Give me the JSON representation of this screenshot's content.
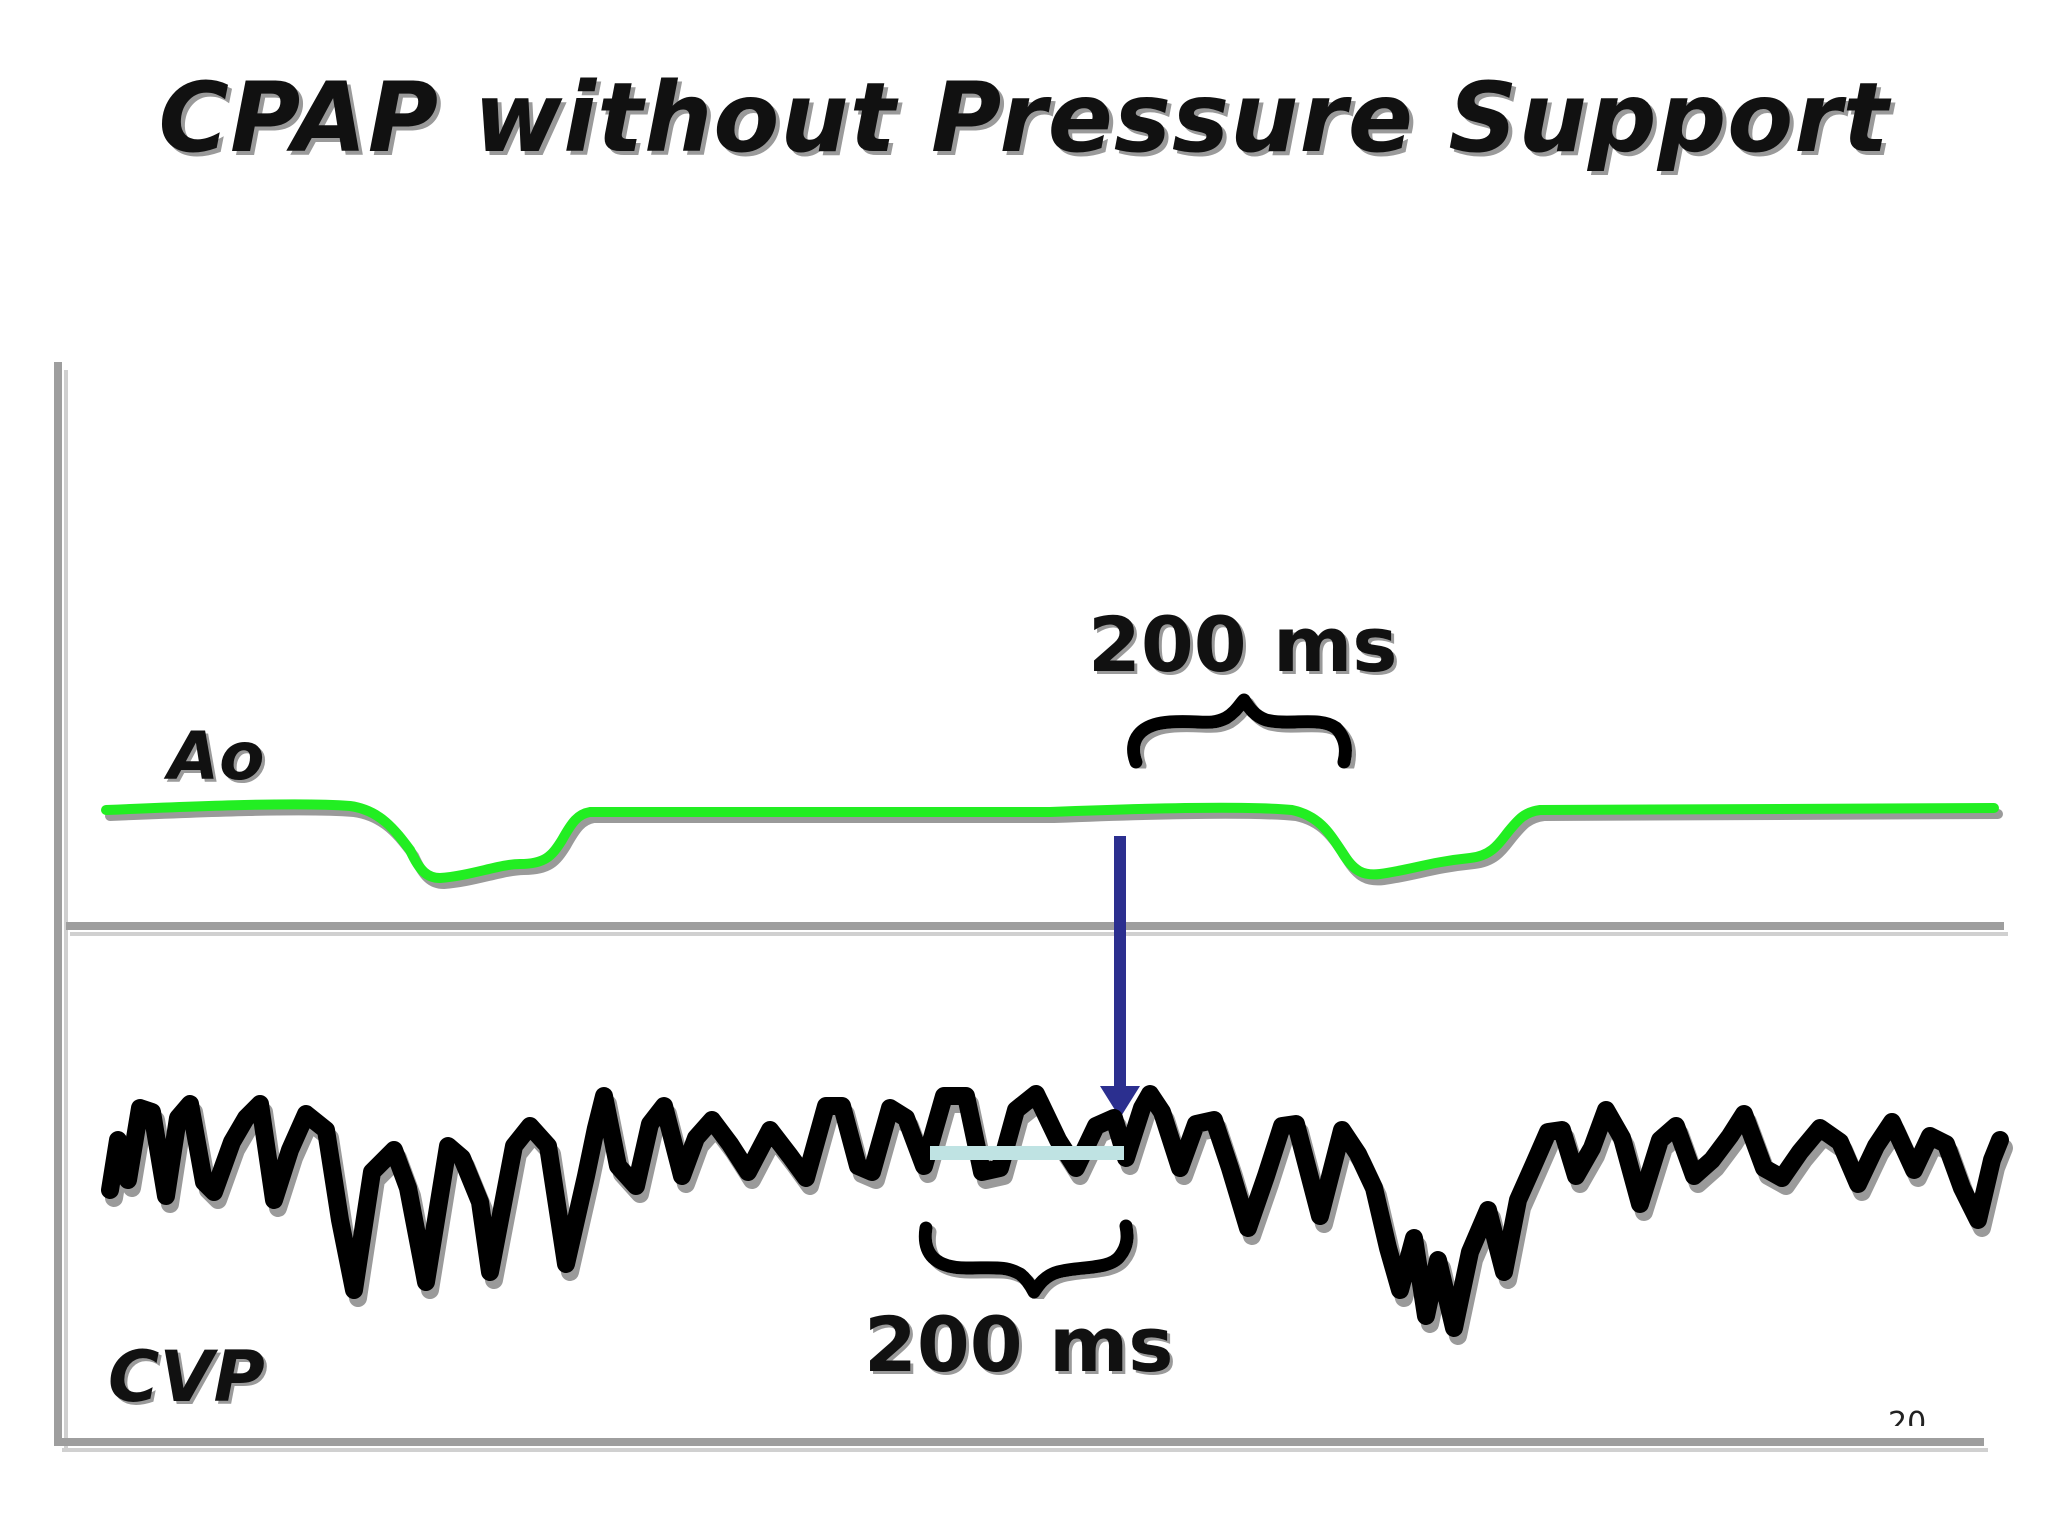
{
  "slide": {
    "title": "CPAP without Pressure Support",
    "page_number": "20"
  },
  "traces": {
    "top": {
      "label": "Ao",
      "color": "#22ee22"
    },
    "bottom": {
      "label": "CVP",
      "color": "#000000"
    }
  },
  "annotations": {
    "top_interval": "200 ms",
    "bottom_interval": "200 ms",
    "arrow_color": "#2b2f8f",
    "marker_bar_color": "#bfe3e3"
  }
}
